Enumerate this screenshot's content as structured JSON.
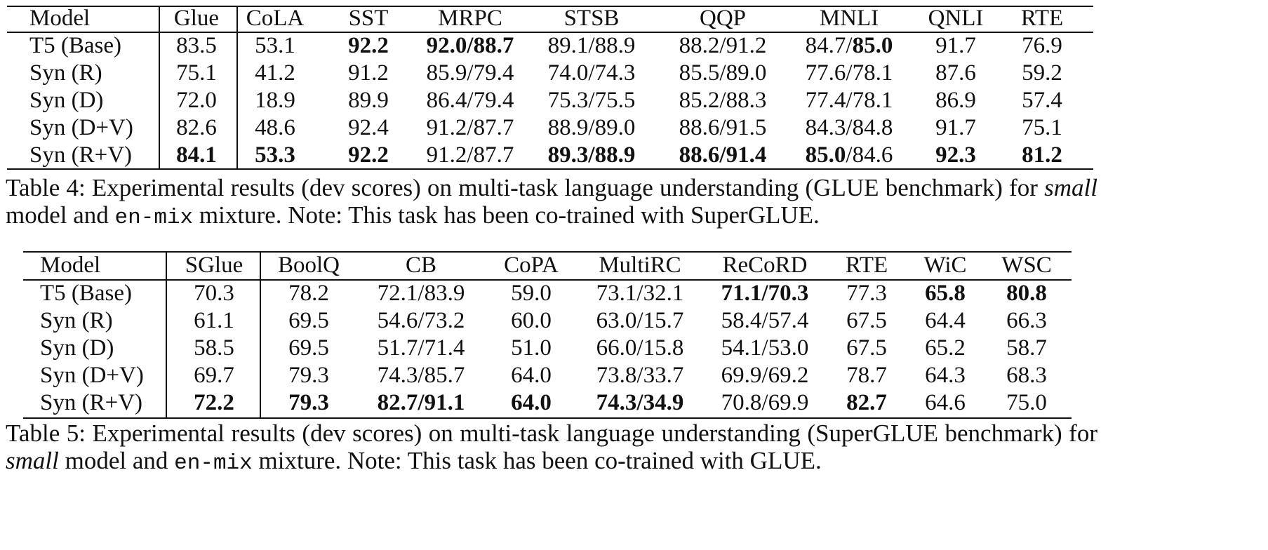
{
  "tables": [
    {
      "header": [
        "Model",
        "Glue",
        "CoLA",
        "SST",
        "MRPC",
        "STSB",
        "QQP",
        "MNLI",
        "QNLI",
        "RTE"
      ],
      "rows": [
        [
          "T5 (Base)",
          "83.5",
          "53.1",
          {
            "text": "92.2",
            "bold": true
          },
          {
            "text": "92.0/88.7",
            "bold": true
          },
          "89.1/88.9",
          "88.2/91.2",
          [
            {
              "text": "84.7/"
            },
            {
              "text": "85.0",
              "bold": true
            }
          ],
          "91.7",
          "76.9"
        ],
        [
          "Syn (R)",
          "75.1",
          "41.2",
          "91.2",
          "85.9/79.4",
          "74.0/74.3",
          "85.5/89.0",
          "77.6/78.1",
          "87.6",
          "59.2"
        ],
        [
          "Syn (D)",
          "72.0",
          "18.9",
          "89.9",
          "86.4/79.4",
          "75.3/75.5",
          "85.2/88.3",
          "77.4/78.1",
          "86.9",
          "57.4"
        ],
        [
          "Syn (D+V)",
          "82.6",
          "48.6",
          "92.4",
          "91.2/87.7",
          "88.9/89.0",
          "88.6/91.5",
          "84.3/84.8",
          "91.7",
          "75.1"
        ],
        [
          "Syn (R+V)",
          {
            "text": "84.1",
            "bold": true
          },
          {
            "text": "53.3",
            "bold": true
          },
          {
            "text": "92.2",
            "bold": true
          },
          "91.2/87.7",
          {
            "text": "89.3/88.9",
            "bold": true
          },
          {
            "text": "88.6/91.4",
            "bold": true
          },
          [
            {
              "text": "85.0",
              "bold": true
            },
            {
              "text": "/84.6"
            }
          ],
          {
            "text": "92.3",
            "bold": true
          },
          {
            "text": "81.2",
            "bold": true
          }
        ]
      ],
      "caption": [
        {
          "text": "Table 4: Experimental results (dev scores) on multi-task language understanding (GLUE benchmark) for "
        },
        {
          "text": "small",
          "style": "italic"
        },
        {
          "text": " model and "
        },
        {
          "text": "en-mix",
          "style": "mono"
        },
        {
          "text": " mixture. Note: This task has been co-trained with SuperGLUE."
        }
      ]
    },
    {
      "header": [
        "Model",
        "SGlue",
        "BoolQ",
        "CB",
        "CoPA",
        "MultiRC",
        "ReCoRD",
        "RTE",
        "WiC",
        "WSC"
      ],
      "rows": [
        [
          "T5 (Base)",
          "70.3",
          "78.2",
          "72.1/83.9",
          "59.0",
          "73.1/32.1",
          {
            "text": "71.1/70.3",
            "bold": true
          },
          "77.3",
          {
            "text": "65.8",
            "bold": true
          },
          {
            "text": "80.8",
            "bold": true
          }
        ],
        [
          "Syn (R)",
          "61.1",
          "69.5",
          "54.6/73.2",
          "60.0",
          "63.0/15.7",
          "58.4/57.4",
          "67.5",
          "64.4",
          "66.3"
        ],
        [
          "Syn (D)",
          "58.5",
          "69.5",
          "51.7/71.4",
          "51.0",
          "66.0/15.8",
          "54.1/53.0",
          "67.5",
          "65.2",
          "58.7"
        ],
        [
          "Syn (D+V)",
          "69.7",
          "79.3",
          "74.3/85.7",
          "64.0",
          "73.8/33.7",
          "69.9/69.2",
          "78.7",
          "64.3",
          "68.3"
        ],
        [
          "Syn (R+V)",
          {
            "text": "72.2",
            "bold": true
          },
          {
            "text": "79.3",
            "bold": true
          },
          {
            "text": "82.7/91.1",
            "bold": true
          },
          {
            "text": "64.0",
            "bold": true
          },
          {
            "text": "74.3/34.9",
            "bold": true
          },
          "70.8/69.9",
          {
            "text": "82.7",
            "bold": true
          },
          "64.6",
          "75.0"
        ]
      ],
      "caption": [
        {
          "text": "Table 5: Experimental results (dev scores) on multi-task language understanding (SuperGLUE benchmark) for "
        },
        {
          "text": "small",
          "style": "italic"
        },
        {
          "text": " model and "
        },
        {
          "text": "en-mix",
          "style": "mono"
        },
        {
          "text": " mixture. Note: This task has been co-trained with GLUE."
        }
      ]
    }
  ]
}
